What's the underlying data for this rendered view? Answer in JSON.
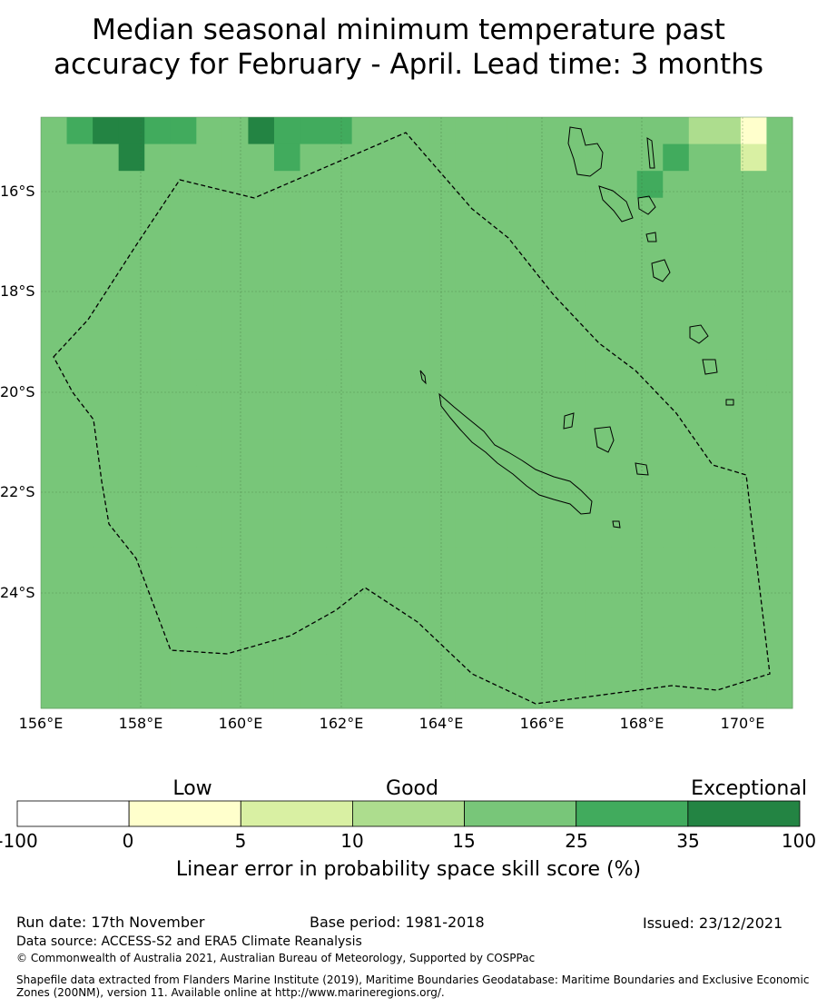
{
  "title": {
    "line1": "Median seasonal minimum temperature past",
    "line2": "accuracy for February - April. Lead time: 3 months"
  },
  "map": {
    "lat_labels": [
      "16°S",
      "18°S",
      "20°S",
      "22°S",
      "24°S"
    ],
    "lon_labels": [
      "156°E",
      "158°E",
      "160°E",
      "162°E",
      "164°E",
      "166°E",
      "168°E",
      "170°E"
    ],
    "grid": {
      "lon_start": 155.8,
      "lat_start": -14.5,
      "cell_deg": 0.833,
      "note": "skill class index per cell: 0=<0,1=0-5,2=5-10,3=10-15,4=15-25,5=25-35,6=35-100",
      "rows": [
        "45665544655544444444444443314",
        "44464444454444444444444454424",
        "44444444444444444444444544444",
        "44444444444444444444444444444",
        "44444444444444444444444444444",
        "44444444444444444444444444444",
        "44444444444444444444444444444",
        "44444444444444444444444444444",
        "44444444444444444444444444444",
        "44444444444444444444444444444",
        "44444444444444444444444444444",
        "44444444444444444444444444444",
        "44444444444444444444444444444",
        "44444444444444444444444444444",
        "44444444444444444444444444444",
        "44444444444444444444444444444",
        "44444444444444444444444444444",
        "44444444444444444444444444444",
        "44444444444444444444444444444",
        "44444444444444444444444444444",
        "44444444444444444444444444444",
        "44444444444444444444444444444"
      ]
    }
  },
  "legend": {
    "categories": [
      "Low",
      "Good",
      "Exceptional"
    ],
    "ticks": [
      "-100",
      "0",
      "5",
      "10",
      "15",
      "25",
      "35",
      "100"
    ],
    "colors": [
      "#ffffff",
      "#ffffcc",
      "#d9f0a3",
      "#addd8e",
      "#78c679",
      "#41ab5d",
      "#238443"
    ],
    "title": "Linear error in probability space skill score (%)"
  },
  "footer": {
    "run_date": "Run date: 17th November",
    "base_period": "Base period: 1981-2018",
    "issued": "Issued: 23/12/2021",
    "data_source": "Data source: ACCESS-S2 and ERA5 Climate Reanalysis",
    "copyright": "© Commonwealth of Australia 2021, Australian Bureau of Meteorology, Supported by COSPPac",
    "shapefile": "Shapefile data extracted from Flanders Marine Institute (2019), Maritime Boundaries Geodatabase: Maritime Boundaries and Exclusive Economic Zones (200NM), version 11. Available online at http://www.marineregions.org/."
  }
}
